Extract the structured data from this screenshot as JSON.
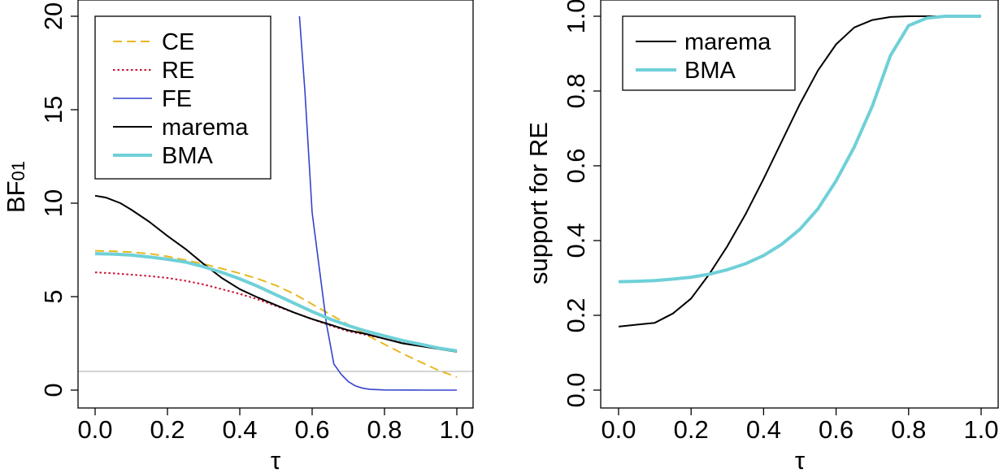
{
  "chart_data": [
    {
      "type": "line",
      "xlabel": "τ",
      "ylabel": "BF",
      "ylabel_sub": "01",
      "xlim": [
        0,
        1
      ],
      "ylim": [
        0,
        20
      ],
      "xticks": [
        "0.0",
        "0.2",
        "0.4",
        "0.6",
        "0.8",
        "1.0"
      ],
      "yticks": [
        "0",
        "5",
        "10",
        "15",
        "20"
      ],
      "grid": false,
      "legend_position": "top-left",
      "reference_line": {
        "y": 1,
        "color": "#bbbbbb"
      },
      "series": [
        {
          "name": "CE",
          "color": "#e8b820",
          "dash": "dashed",
          "x": [
            0,
            0.05,
            0.1,
            0.15,
            0.2,
            0.25,
            0.3,
            0.35,
            0.4,
            0.45,
            0.5,
            0.55,
            0.6,
            0.65,
            0.7,
            0.75,
            0.8,
            0.85,
            0.9,
            0.95,
            1.0
          ],
          "y": [
            7.45,
            7.43,
            7.38,
            7.3,
            7.15,
            6.95,
            6.75,
            6.5,
            6.25,
            5.95,
            5.6,
            5.15,
            4.6,
            4.05,
            3.5,
            2.95,
            2.45,
            1.95,
            1.5,
            1.05,
            0.7
          ]
        },
        {
          "name": "RE",
          "color": "#cc1133",
          "dash": "dotted",
          "x": [
            0,
            0.05,
            0.1,
            0.15,
            0.2,
            0.25,
            0.3,
            0.35,
            0.4,
            0.45,
            0.5,
            0.55,
            0.6,
            0.65,
            0.7,
            0.75,
            0.8,
            0.85,
            0.9,
            0.95,
            1.0
          ],
          "y": [
            6.3,
            6.25,
            6.18,
            6.1,
            6.0,
            5.85,
            5.65,
            5.4,
            5.15,
            4.85,
            4.5,
            4.15,
            3.8,
            3.45,
            3.15,
            2.95,
            2.75,
            2.55,
            2.4,
            2.25,
            2.1
          ]
        },
        {
          "name": "FE",
          "color": "#3344cc",
          "dash": "solid",
          "x": [
            0.565,
            0.58,
            0.6,
            0.62,
            0.64,
            0.66,
            0.68,
            0.7,
            0.72,
            0.74,
            0.76,
            0.8,
            0.9,
            1.0
          ],
          "y": [
            20.0,
            16.0,
            9.5,
            6.5,
            3.5,
            1.4,
            0.85,
            0.45,
            0.22,
            0.1,
            0.04,
            0.01,
            0.0,
            0.0
          ]
        },
        {
          "name": "marema",
          "color": "#000000",
          "dash": "solid",
          "x": [
            0,
            0.03,
            0.07,
            0.1,
            0.15,
            0.2,
            0.25,
            0.3,
            0.35,
            0.4,
            0.45,
            0.5,
            0.55,
            0.6,
            0.65,
            0.7,
            0.75,
            0.8,
            0.85,
            0.9,
            0.95,
            1.0
          ],
          "y": [
            10.4,
            10.3,
            10.0,
            9.65,
            9.0,
            8.25,
            7.55,
            6.75,
            6.0,
            5.4,
            4.95,
            4.55,
            4.15,
            3.8,
            3.5,
            3.2,
            3.0,
            2.75,
            2.5,
            2.35,
            2.2,
            2.05
          ]
        },
        {
          "name": "BMA",
          "color": "#6fd0d8",
          "dash": "solid",
          "x": [
            0,
            0.05,
            0.1,
            0.15,
            0.2,
            0.25,
            0.3,
            0.35,
            0.4,
            0.45,
            0.5,
            0.55,
            0.6,
            0.65,
            0.7,
            0.75,
            0.8,
            0.85,
            0.9,
            0.95,
            1.0
          ],
          "y": [
            7.3,
            7.28,
            7.22,
            7.12,
            7.0,
            6.85,
            6.6,
            6.3,
            5.95,
            5.55,
            5.1,
            4.65,
            4.2,
            3.8,
            3.45,
            3.15,
            2.9,
            2.65,
            2.45,
            2.25,
            2.1
          ]
        }
      ]
    },
    {
      "type": "line",
      "xlabel": "τ",
      "ylabel": "support for RE",
      "xlim": [
        0,
        1
      ],
      "ylim": [
        0,
        1
      ],
      "xticks": [
        "0.0",
        "0.2",
        "0.4",
        "0.6",
        "0.8",
        "1.0"
      ],
      "yticks": [
        "0.0",
        "0.2",
        "0.4",
        "0.6",
        "0.8",
        "1.0"
      ],
      "grid": false,
      "legend_position": "top-left",
      "series": [
        {
          "name": "marema",
          "color": "#000000",
          "dash": "solid",
          "x": [
            0,
            0.05,
            0.1,
            0.15,
            0.2,
            0.25,
            0.3,
            0.35,
            0.4,
            0.45,
            0.5,
            0.55,
            0.6,
            0.65,
            0.7,
            0.75,
            0.8,
            0.85,
            0.9,
            1.0
          ],
          "y": [
            0.17,
            0.175,
            0.18,
            0.205,
            0.245,
            0.31,
            0.385,
            0.47,
            0.565,
            0.665,
            0.765,
            0.855,
            0.925,
            0.97,
            0.99,
            0.998,
            1.0,
            1.0,
            1.0,
            1.0
          ]
        },
        {
          "name": "BMA",
          "color": "#6fd0d8",
          "dash": "solid",
          "x": [
            0,
            0.05,
            0.1,
            0.15,
            0.2,
            0.25,
            0.3,
            0.35,
            0.4,
            0.45,
            0.5,
            0.55,
            0.6,
            0.65,
            0.7,
            0.75,
            0.8,
            0.85,
            0.9,
            0.95,
            1.0
          ],
          "y": [
            0.29,
            0.291,
            0.293,
            0.297,
            0.302,
            0.31,
            0.322,
            0.338,
            0.36,
            0.39,
            0.43,
            0.485,
            0.56,
            0.65,
            0.76,
            0.895,
            0.975,
            0.995,
            1.0,
            1.0,
            1.0
          ]
        }
      ]
    }
  ]
}
